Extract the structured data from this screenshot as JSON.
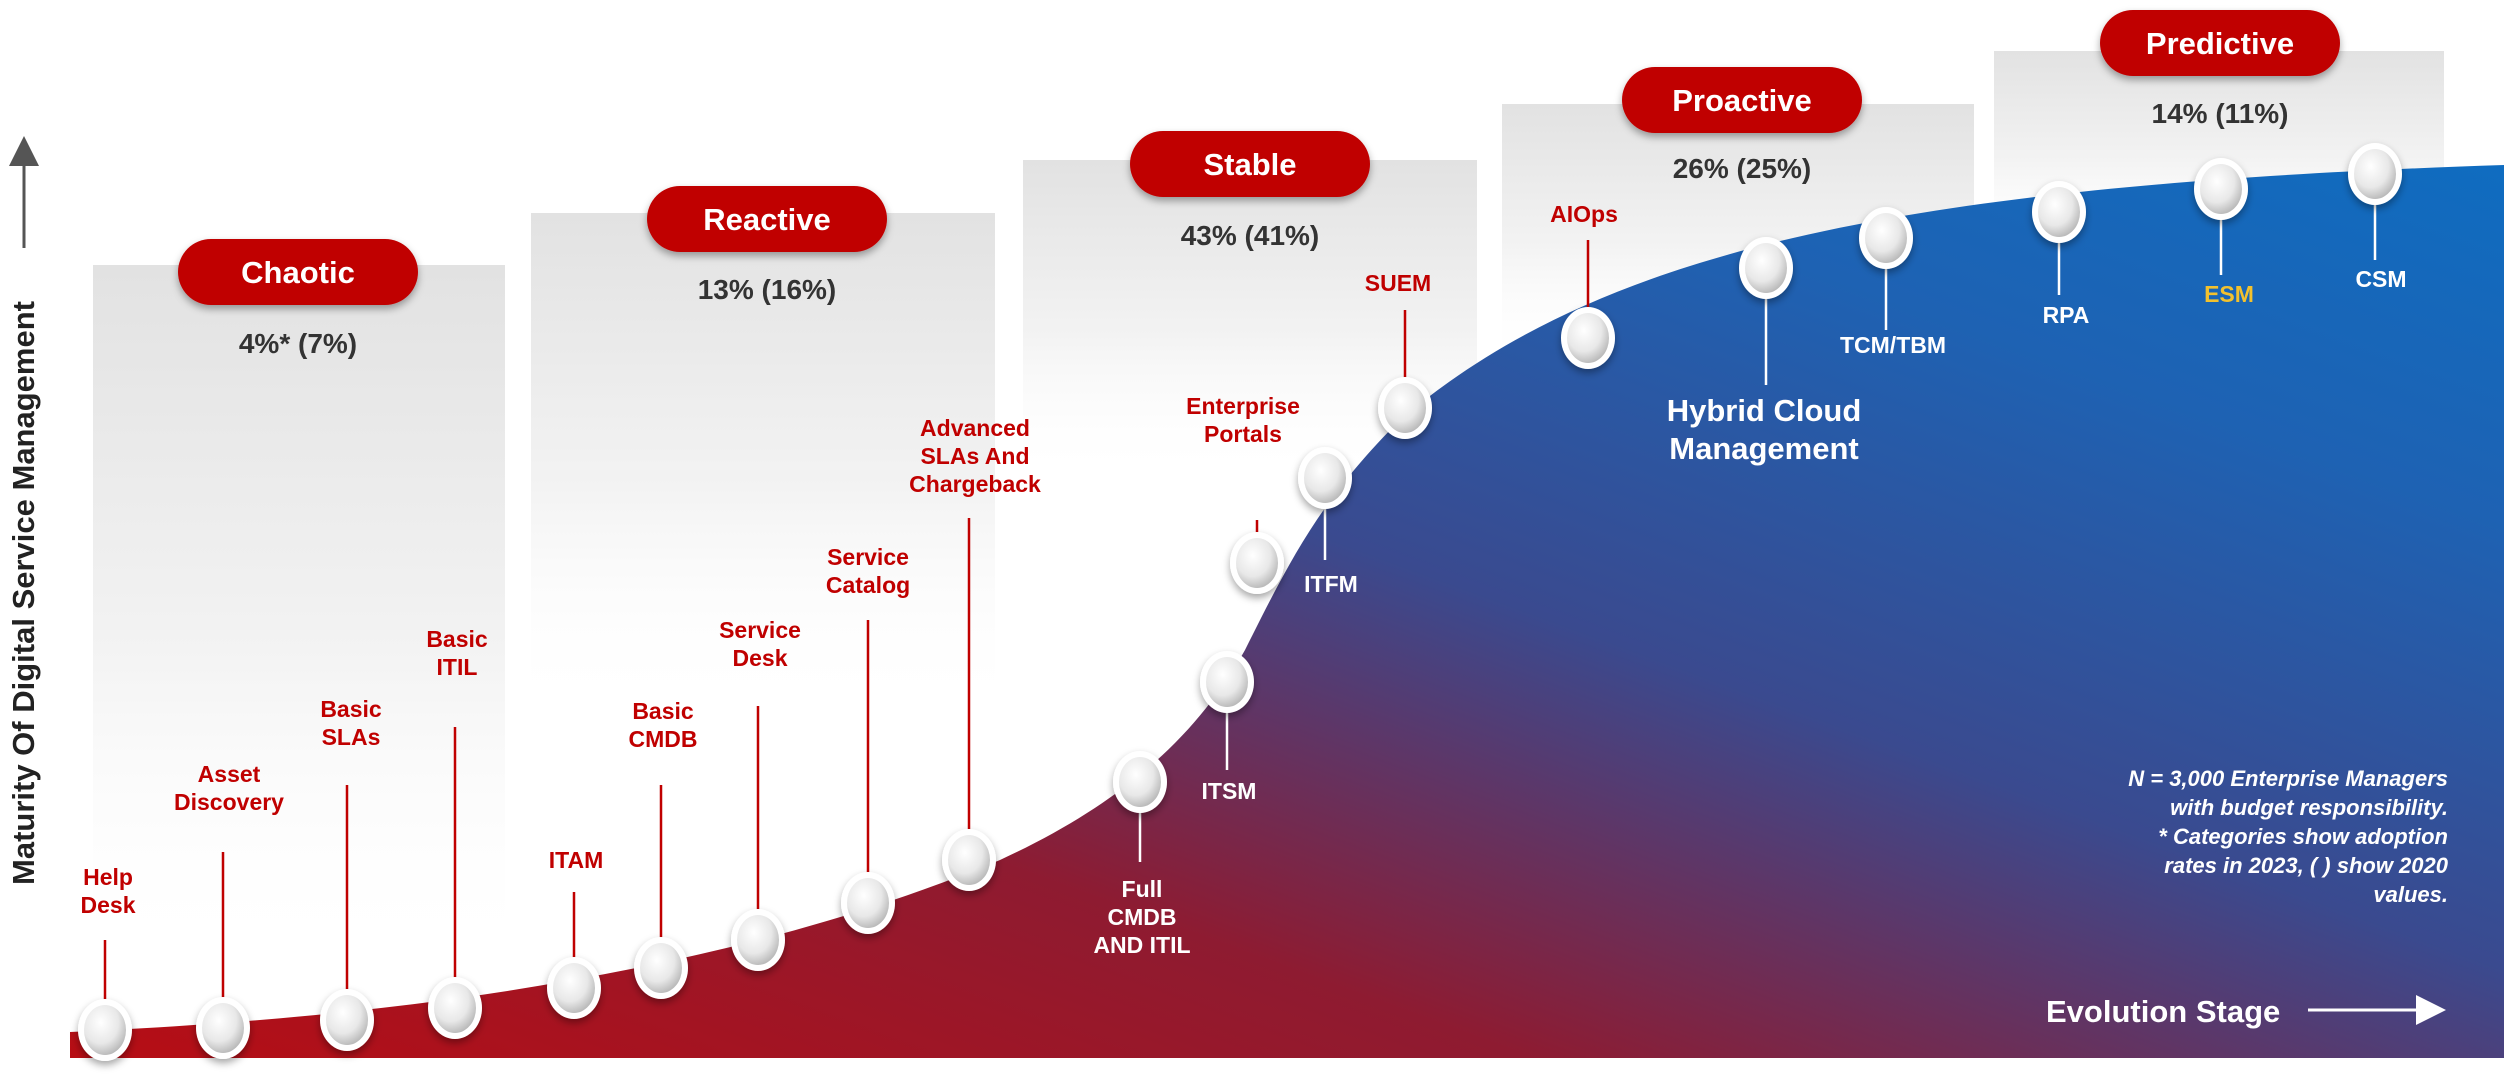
{
  "y_axis_label": "Maturity Of Digital Service Management",
  "x_axis_label": "Evolution Stage",
  "colors": {
    "stage_red": "#c00000",
    "curve_red": "#a8101e",
    "curve_blue": "#0f6cc0",
    "text_red": "#c00000",
    "highlight_yellow": "#f2c12e"
  },
  "stages": [
    {
      "name": "Chaotic",
      "adoption": "4%* (7%)"
    },
    {
      "name": "Reactive",
      "adoption": "13% (16%)"
    },
    {
      "name": "Stable",
      "adoption": "43% (41%)"
    },
    {
      "name": "Proactive",
      "adoption": "26% (25%)"
    },
    {
      "name": "Predictive",
      "adoption": "14% (11%)"
    }
  ],
  "capabilities": [
    {
      "label": [
        "Help",
        "Desk"
      ]
    },
    {
      "label": [
        "Asset",
        "Discovery"
      ]
    },
    {
      "label": [
        "Basic",
        "SLAs"
      ]
    },
    {
      "label": [
        "Basic",
        "ITIL"
      ]
    },
    {
      "label": [
        "ITAM"
      ]
    },
    {
      "label": [
        "Basic",
        "CMDB"
      ]
    },
    {
      "label": [
        "Service",
        "Desk"
      ]
    },
    {
      "label": [
        "Service",
        "Catalog"
      ]
    },
    {
      "label": [
        "Advanced",
        "SLAs And",
        "Chargeback"
      ]
    },
    {
      "label": [
        "Full",
        "CMDB",
        "AND ITIL"
      ]
    },
    {
      "label": [
        "ITSM"
      ]
    },
    {
      "label": [
        "Enterprise",
        "Portals"
      ]
    },
    {
      "label": [
        "ITFM"
      ]
    },
    {
      "label": [
        "SUEM"
      ]
    },
    {
      "label": [
        "AIOps"
      ]
    },
    {
      "label": [
        "Hybrid Cloud",
        "Management"
      ]
    },
    {
      "label": [
        "TCM/TBM"
      ]
    },
    {
      "label": [
        "RPA"
      ]
    },
    {
      "label": [
        "ESM"
      ]
    },
    {
      "label": [
        "CSM"
      ]
    }
  ],
  "note": [
    "N = 3,000 Enterprise Managers",
    "with budget responsibility.",
    "* Categories show adoption",
    "rates in 2023, ( ) show 2020",
    "values."
  ]
}
